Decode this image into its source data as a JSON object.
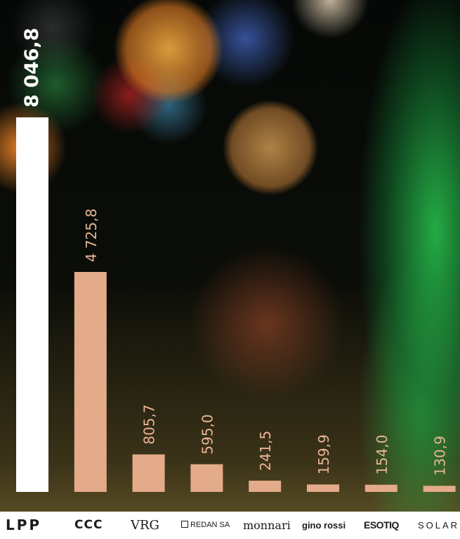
{
  "chart_data": {
    "type": "bar",
    "categories": [
      "LPP",
      "CCC",
      "VRG",
      "REDAN SA",
      "monnari",
      "gino rossi",
      "ESOTIQ",
      "SOLAR"
    ],
    "values": [
      8046.8,
      4725.8,
      805.7,
      595.0,
      241.5,
      159.9,
      154.0,
      130.9
    ],
    "value_labels": [
      "8 046,8",
      "4 725,8",
      "805,7",
      "595,0",
      "241,5",
      "159,9",
      "154,0",
      "130,9"
    ],
    "title": "",
    "xlabel": "",
    "ylabel": "",
    "ylim": [
      0,
      8046.8
    ],
    "grid": false,
    "colors": {
      "highlight": "#ffffff",
      "bar": "#e3ab8a",
      "highlight_label": "#ffffff",
      "label": "#e8b394"
    }
  },
  "logos": [
    {
      "id": "lpp",
      "name": "LPP"
    },
    {
      "id": "ccc",
      "name": "CCC"
    },
    {
      "id": "vrg",
      "name": "VRG"
    },
    {
      "id": "redan",
      "name": "REDAN SA"
    },
    {
      "id": "monnari",
      "name": "monnari"
    },
    {
      "id": "gino",
      "name": "gino rossi"
    },
    {
      "id": "esotiq",
      "name": "ESOTIQ"
    },
    {
      "id": "solar",
      "name": "SOLAR"
    }
  ]
}
